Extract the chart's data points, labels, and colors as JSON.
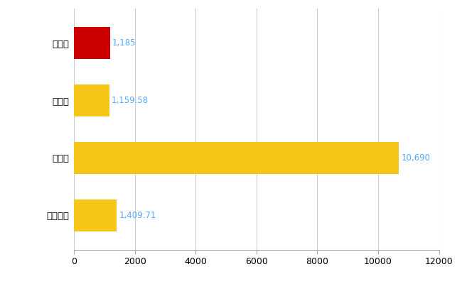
{
  "categories": [
    "日南市",
    "県平均",
    "県最大",
    "全国平均"
  ],
  "values": [
    1185,
    1159.58,
    10690,
    1409.71
  ],
  "labels": [
    "1,185",
    "1,159.58",
    "10,690",
    "1,409.71"
  ],
  "bar_colors": [
    "#cc0000",
    "#f5c518",
    "#f5c518",
    "#f5c518"
  ],
  "xlim": [
    0,
    12000
  ],
  "xticks": [
    0,
    2000,
    4000,
    6000,
    8000,
    10000,
    12000
  ],
  "grid_color": "#cccccc",
  "label_color": "#55aaff",
  "background_color": "#ffffff",
  "bar_height": 0.55,
  "figsize": [
    6.5,
    4.0
  ],
  "dpi": 100
}
